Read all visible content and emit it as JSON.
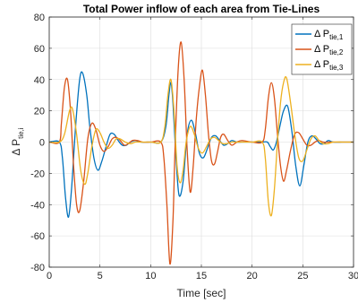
{
  "chart_data": {
    "type": "line",
    "title": "Total Power inflow of each area from Tie-Lines",
    "xlabel": "Time [sec]",
    "ylabel": {
      "main": "Δ P",
      "sub": "tie,i"
    },
    "xlim": [
      0,
      30
    ],
    "ylim": [
      -80,
      80
    ],
    "xticks": [
      0,
      5,
      10,
      15,
      20,
      25,
      30
    ],
    "yticks": [
      -80,
      -60,
      -40,
      -20,
      0,
      20,
      40,
      60,
      80
    ],
    "grid": true,
    "legend_position": "top-right",
    "series": [
      {
        "name": "Δ P",
        "name_sub": "tie,1",
        "color": "#0072BD",
        "x": [
          0,
          1,
          1.3,
          1.6,
          1.9,
          2.2,
          2.6,
          3.0,
          3.3,
          3.7,
          4.0,
          4.4,
          4.8,
          5.2,
          5.6,
          6.0,
          6.4,
          6.8,
          7.2,
          7.6,
          8.0,
          8.5,
          9,
          10,
          11,
          11.5,
          11.8,
          12.0,
          12.2,
          12.5,
          12.8,
          13.2,
          13.6,
          14.0,
          14.4,
          14.8,
          15.2,
          15.6,
          16.0,
          16.4,
          16.8,
          17.2,
          17.6,
          18.0,
          18.5,
          19,
          20,
          21,
          21.5,
          21.8,
          22.1,
          22.4,
          22.8,
          23.1,
          23.5,
          23.9,
          24.3,
          24.7,
          25.1,
          25.5,
          25.9,
          26.3,
          26.7,
          27.1,
          27.5,
          28,
          29,
          30
        ],
        "y": [
          0,
          0,
          -10,
          -35,
          -48,
          -30,
          10,
          40,
          44,
          30,
          10,
          -10,
          -18,
          -12,
          -3,
          5,
          5,
          1,
          -2,
          -2,
          0,
          1,
          0,
          0,
          0,
          10,
          30,
          38,
          25,
          -10,
          -34,
          -25,
          5,
          14,
          6,
          -7,
          -10,
          -4,
          3,
          4,
          1,
          -2,
          -1,
          1,
          0,
          0,
          0,
          0,
          0,
          -3,
          -5,
          0,
          12,
          20,
          23,
          8,
          -15,
          -28,
          -15,
          0,
          4,
          2,
          -1,
          -1,
          1,
          0,
          0,
          0
        ]
      },
      {
        "name": "Δ P",
        "name_sub": "tie,2",
        "color": "#D95319",
        "x": [
          0,
          1,
          1.2,
          1.5,
          1.8,
          2.1,
          2.4,
          2.7,
          3.0,
          3.4,
          3.8,
          4.2,
          4.6,
          5.0,
          5.4,
          5.8,
          6.2,
          6.6,
          7.0,
          7.4,
          7.8,
          8.2,
          8.7,
          9.2,
          10,
          11,
          11.3,
          11.6,
          11.9,
          12.2,
          12.4,
          12.7,
          13.0,
          13.3,
          13.6,
          13.9,
          14.2,
          14.5,
          14.8,
          15.1,
          15.4,
          15.7,
          16.0,
          16.3,
          16.6,
          16.9,
          17.2,
          17.6,
          18.0,
          18.5,
          19,
          20,
          21,
          21.3,
          21.6,
          21.9,
          22.2,
          22.5,
          22.8,
          23.1,
          23.4,
          23.8,
          24.2,
          24.6,
          25.0,
          25.4,
          25.8,
          26.2,
          26.6,
          27,
          28,
          29,
          30
        ],
        "y": [
          0,
          0,
          12,
          35,
          40,
          20,
          -15,
          -40,
          -44,
          -25,
          2,
          12,
          8,
          -2,
          -6,
          -3,
          2,
          3,
          1,
          -2,
          -1,
          1,
          1,
          0,
          0,
          0,
          -10,
          -40,
          -78,
          -50,
          -5,
          45,
          64,
          40,
          -5,
          -32,
          -15,
          15,
          35,
          46,
          30,
          5,
          -12,
          -14,
          -6,
          3,
          5,
          1,
          -2,
          0,
          1,
          0,
          0,
          8,
          28,
          38,
          28,
          5,
          -15,
          -25,
          -18,
          -5,
          5,
          6,
          2,
          -2,
          -2,
          0,
          1,
          0,
          0,
          0,
          0
        ]
      },
      {
        "name": "Δ P",
        "name_sub": "tie,3",
        "color": "#EDB120",
        "x": [
          0,
          1,
          1.5,
          2.0,
          2.3,
          2.7,
          3.1,
          3.5,
          3.8,
          4.2,
          4.6,
          5.0,
          5.4,
          5.8,
          6.2,
          6.6,
          7.0,
          7.5,
          8.0,
          8.5,
          9,
          10,
          11,
          11.4,
          11.7,
          12.0,
          12.3,
          12.6,
          12.9,
          13.2,
          13.5,
          13.9,
          14.3,
          14.7,
          15.1,
          15.5,
          15.9,
          16.3,
          16.7,
          17.1,
          17.5,
          18.0,
          18.5,
          19,
          20,
          21,
          21.3,
          21.6,
          21.9,
          22.2,
          22.5,
          22.8,
          23.1,
          23.4,
          23.8,
          24.2,
          24.6,
          25.0,
          25.4,
          25.8,
          26.2,
          26.6,
          27.0,
          27.5,
          28,
          29,
          30
        ],
        "y": [
          0,
          0,
          5,
          20,
          21,
          5,
          -18,
          -27,
          -20,
          -3,
          8,
          6,
          0,
          -4,
          -2,
          2,
          2,
          0,
          -1,
          0,
          0,
          0,
          0,
          10,
          30,
          40,
          20,
          -15,
          -26,
          -18,
          0,
          10,
          5,
          -4,
          -7,
          -3,
          2,
          3,
          1,
          -1,
          -1,
          0,
          0,
          0,
          0,
          0,
          -10,
          -38,
          -47,
          -30,
          0,
          25,
          38,
          41,
          25,
          5,
          -10,
          -12,
          -5,
          2,
          4,
          1,
          -1,
          -1,
          0,
          0,
          0
        ]
      }
    ]
  }
}
